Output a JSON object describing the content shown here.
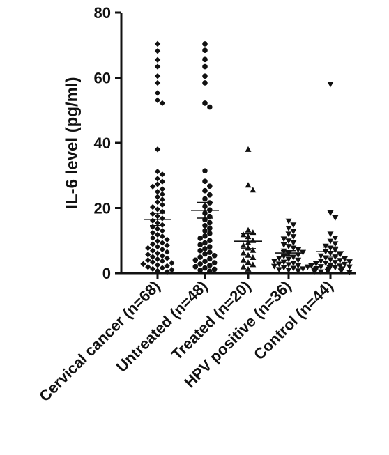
{
  "chart_data": {
    "type": "scatter",
    "title": "",
    "xlabel": "",
    "ylabel": "IL-6 level (pg/ml)",
    "ylim": [
      0,
      80
    ],
    "yticks": [
      0,
      20,
      40,
      60,
      80
    ],
    "grid": false,
    "legend": "none",
    "categories": [
      "Cervical cancer (n=68)",
      "Untreated (n=48)",
      "Treated (n=20)",
      "HPV positive (n=36)",
      "Control (n=44)"
    ],
    "series": [
      {
        "marker": "diamond",
        "mean": 16.5,
        "sem": 1.9,
        "values": [
          70.4,
          68.2,
          65.5,
          63.4,
          60.5,
          58.4,
          55.3,
          53.1,
          52.2,
          38.0,
          31.2,
          30.3,
          29.0,
          28.1,
          27.3,
          26.6,
          25.8,
          25.0,
          24.2,
          23.4,
          22.6,
          21.8,
          21.0,
          20.3,
          19.6,
          18.9,
          18.2,
          17.5,
          16.8,
          16.1,
          15.4,
          14.8,
          14.2,
          13.6,
          13.0,
          12.4,
          11.8,
          11.3,
          10.8,
          10.3,
          9.8,
          9.3,
          8.9,
          8.5,
          8.1,
          7.7,
          7.3,
          6.9,
          6.5,
          6.1,
          5.7,
          5.3,
          5.0,
          4.6,
          4.3,
          4.0,
          3.7,
          3.4,
          3.1,
          2.8,
          2.5,
          2.2,
          1.9,
          1.6,
          1.3,
          1.0,
          0.7,
          0.4
        ]
      },
      {
        "marker": "circle",
        "mean": 19.3,
        "sem": 2.4,
        "values": [
          70.4,
          68.4,
          65.6,
          63.4,
          60.5,
          58.4,
          52.2,
          51.0,
          31.4,
          28.2,
          26.7,
          25.3,
          24.0,
          22.8,
          21.6,
          20.5,
          19.4,
          18.4,
          17.4,
          16.4,
          15.5,
          14.6,
          13.8,
          13.0,
          12.2,
          11.4,
          10.7,
          10.0,
          9.3,
          8.7,
          8.1,
          7.5,
          6.9,
          6.4,
          5.9,
          5.4,
          4.9,
          4.4,
          4.0,
          3.6,
          3.2,
          2.8,
          2.4,
          2.0,
          1.6,
          1.2,
          0.9,
          0.6
        ]
      },
      {
        "marker": "triangle-up",
        "mean": 9.8,
        "sem": 2.3,
        "values": [
          38.0,
          27.0,
          25.5,
          13.2,
          12.5,
          11.8,
          11.2,
          10.0,
          9.3,
          8.5,
          7.7,
          7.0,
          6.2,
          5.5,
          4.8,
          4.0,
          3.3,
          2.6,
          1.9,
          1.2
        ]
      },
      {
        "marker": "triangle-down",
        "mean": 6.2,
        "sem": 0.7,
        "values": [
          16.0,
          14.8,
          13.8,
          12.8,
          12.0,
          11.2,
          10.5,
          9.9,
          9.3,
          8.7,
          8.2,
          7.7,
          7.2,
          6.8,
          6.4,
          6.0,
          5.6,
          5.2,
          4.9,
          4.6,
          4.3,
          4.0,
          3.7,
          3.4,
          3.1,
          2.8,
          2.6,
          2.3,
          2.1,
          1.9,
          1.7,
          1.5,
          1.3,
          1.1,
          0.9,
          0.7
        ]
      },
      {
        "marker": "triangle-down",
        "mean": 6.6,
        "sem": 1.4,
        "values": [
          58.0,
          18.5,
          17.0,
          12.0,
          10.8,
          9.8,
          9.0,
          8.3,
          7.7,
          7.1,
          6.6,
          6.1,
          5.7,
          5.3,
          5.0,
          4.7,
          4.4,
          4.1,
          3.9,
          3.7,
          3.5,
          3.3,
          3.1,
          2.9,
          2.7,
          2.5,
          2.3,
          2.2,
          2.0,
          1.9,
          1.7,
          1.6,
          1.4,
          1.3,
          1.2,
          1.1,
          1.0,
          0.9,
          0.8,
          0.7,
          0.6,
          0.5,
          0.4,
          0.3
        ]
      }
    ]
  }
}
